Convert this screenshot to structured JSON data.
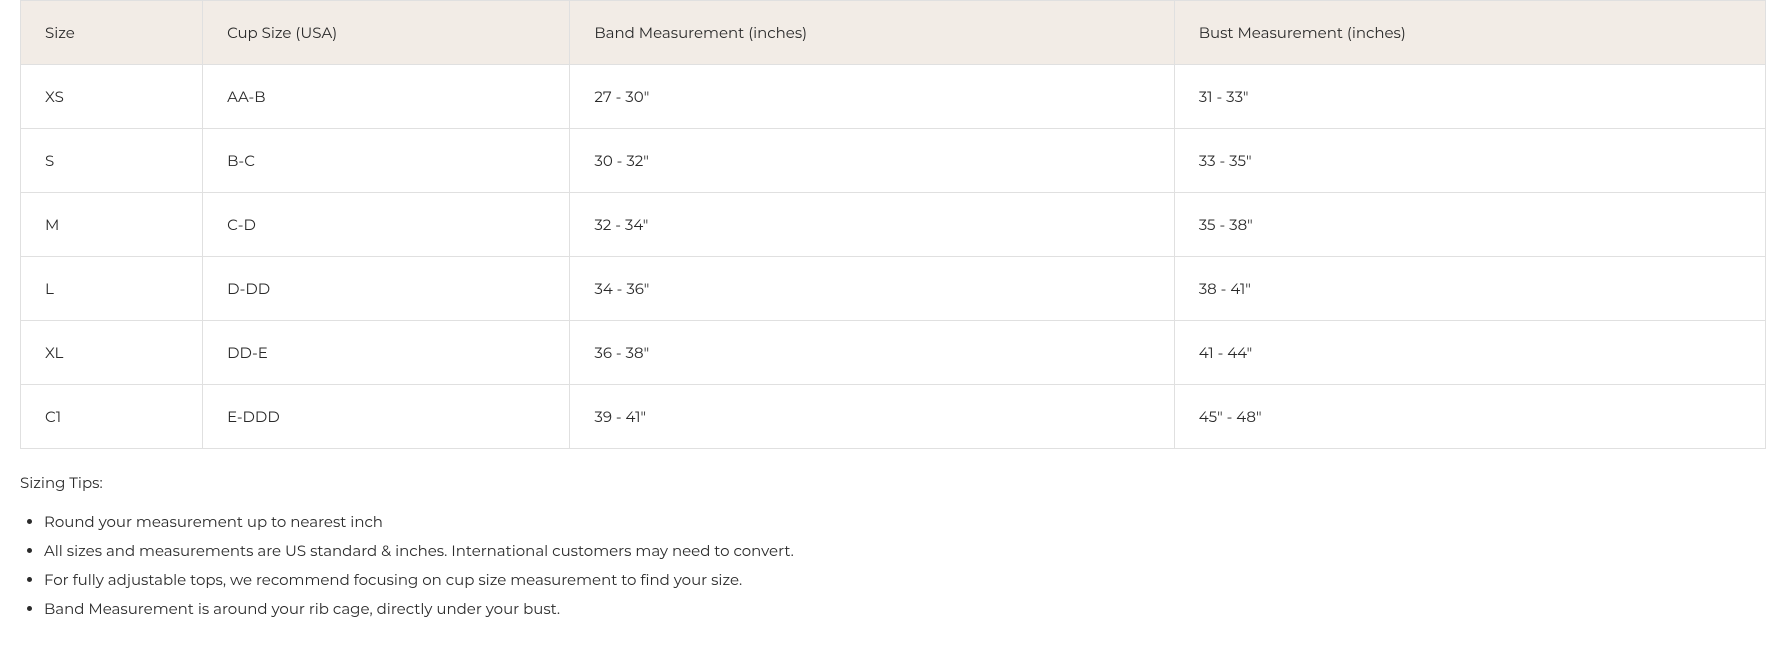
{
  "table": {
    "header_background": "#f2ece6",
    "border_color": "#e0e0e0",
    "cell_background": "#ffffff",
    "text_color": "#2a2a2a",
    "font_size": 15,
    "columns": [
      "Size",
      "Cup Size (USA)",
      "Band Measurement (inches)",
      "Bust Measurement (inches)"
    ],
    "rows": [
      [
        "XS",
        "AA-B",
        "27 - 30\"",
        "31 - 33\""
      ],
      [
        "S",
        "B-C",
        "30 - 32\"",
        "33 - 35\""
      ],
      [
        "M",
        "C-D",
        "32 - 34\"",
        "35 - 38\""
      ],
      [
        "L",
        "D-DD",
        "34 - 36\"",
        "38 - 41\""
      ],
      [
        "XL",
        "DD-E",
        "36 - 38\"",
        "41 - 44\""
      ],
      [
        "C1",
        "E-DDD",
        "39 - 41\"",
        "45\" - 48\""
      ]
    ]
  },
  "tips": {
    "title": "Sizing Tips:",
    "items": [
      "Round your measurement up to nearest inch",
      "All sizes and measurements are US standard & inches. International customers may need to convert.",
      "For fully adjustable tops, we recommend focusing on cup size measurement to find your size.",
      "Band Measurement is around your rib cage, directly under your bust."
    ]
  }
}
